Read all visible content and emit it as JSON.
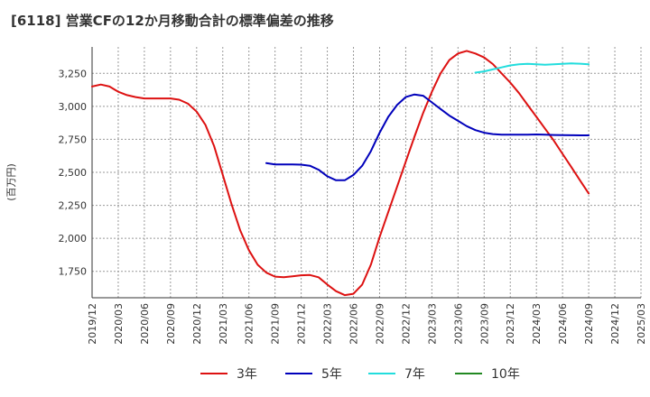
{
  "chart_data": {
    "type": "line",
    "title": "[6118]  営業CFの12か月移動合計の標準偏差の推移",
    "ylabel": "(百万円)",
    "xlabel": "",
    "ylim": [
      1550,
      3450
    ],
    "y_ticks": [
      1750,
      2000,
      2250,
      2500,
      2750,
      3000,
      3250
    ],
    "y_tick_labels": [
      "1,750",
      "2,000",
      "2,250",
      "2,500",
      "2,750",
      "3,000",
      "3,250"
    ],
    "x_ticks": [
      "2019/12",
      "2020/03",
      "2020/06",
      "2020/09",
      "2020/12",
      "2021/03",
      "2021/06",
      "2021/09",
      "2021/12",
      "2022/03",
      "2022/06",
      "2022/09",
      "2022/12",
      "2023/03",
      "2023/06",
      "2023/09",
      "2023/12",
      "2024/03",
      "2024/06",
      "2024/09",
      "2024/12",
      "2025/03"
    ],
    "grid": true,
    "legend_position": "bottom",
    "series": [
      {
        "name": "3年",
        "color": "#dd1111",
        "x": [
          "2019/12",
          "2020/01",
          "2020/02",
          "2020/03",
          "2020/04",
          "2020/05",
          "2020/06",
          "2020/07",
          "2020/08",
          "2020/09",
          "2020/10",
          "2020/11",
          "2020/12",
          "2021/01",
          "2021/02",
          "2021/03",
          "2021/04",
          "2021/05",
          "2021/06",
          "2021/07",
          "2021/08",
          "2021/09",
          "2021/10",
          "2021/11",
          "2021/12",
          "2022/01",
          "2022/02",
          "2022/03",
          "2022/04",
          "2022/05",
          "2022/06",
          "2022/07",
          "2022/08",
          "2022/09",
          "2022/10",
          "2022/11",
          "2022/12",
          "2023/01",
          "2023/02",
          "2023/03",
          "2023/04",
          "2023/05",
          "2023/06",
          "2023/07",
          "2023/08",
          "2023/09",
          "2023/10",
          "2023/11",
          "2023/12",
          "2024/01",
          "2024/02",
          "2024/03",
          "2024/04",
          "2024/05",
          "2024/06",
          "2024/07",
          "2024/08",
          "2024/09"
        ],
        "values": [
          3150,
          3165,
          3150,
          3110,
          3085,
          3070,
          3060,
          3060,
          3060,
          3060,
          3050,
          3020,
          2960,
          2860,
          2700,
          2480,
          2260,
          2060,
          1910,
          1800,
          1740,
          1710,
          1705,
          1712,
          1720,
          1722,
          1705,
          1650,
          1600,
          1570,
          1580,
          1650,
          1800,
          2010,
          2200,
          2390,
          2580,
          2770,
          2950,
          3110,
          3250,
          3350,
          3400,
          3420,
          3400,
          3370,
          3320,
          3250,
          3180,
          3100,
          3010,
          2920,
          2830,
          2740,
          2640,
          2540,
          2440,
          2340
        ],
        "display_values_note": ""
      },
      {
        "name": "5年",
        "color": "#0000bb",
        "x": [
          "2021/08",
          "2021/09",
          "2021/10",
          "2021/11",
          "2021/12",
          "2022/01",
          "2022/02",
          "2022/03",
          "2022/04",
          "2022/05",
          "2022/06",
          "2022/07",
          "2022/08",
          "2022/09",
          "2022/10",
          "2022/11",
          "2022/12",
          "2023/01",
          "2023/02",
          "2023/03",
          "2023/04",
          "2023/05",
          "2023/06",
          "2023/07",
          "2023/08",
          "2023/09",
          "2023/10",
          "2023/11",
          "2023/12",
          "2024/01",
          "2024/02",
          "2024/03",
          "2024/04",
          "2024/05",
          "2024/06",
          "2024/07",
          "2024/08",
          "2024/09"
        ],
        "values": [
          2570,
          2560,
          2560,
          2560,
          2558,
          2550,
          2520,
          2470,
          2440,
          2440,
          2480,
          2550,
          2660,
          2800,
          2920,
          3010,
          3070,
          3090,
          3080,
          3030,
          2980,
          2930,
          2890,
          2850,
          2820,
          2800,
          2790,
          2785,
          2785,
          2785,
          2786,
          2787,
          2785,
          2783,
          2782,
          2781,
          2780,
          2780
        ]
      },
      {
        "name": "7年",
        "color": "#22dddd",
        "x": [
          "2023/08",
          "2023/09",
          "2023/10",
          "2023/11",
          "2023/12",
          "2024/01",
          "2024/02",
          "2024/03",
          "2024/04",
          "2024/05",
          "2024/06",
          "2024/07",
          "2024/08",
          "2024/09"
        ],
        "values": [
          3255,
          3265,
          3280,
          3295,
          3310,
          3318,
          3322,
          3318,
          3315,
          3318,
          3322,
          3325,
          3323,
          3318
        ]
      },
      {
        "name": "10年",
        "color": "#228822",
        "x": [],
        "values": []
      }
    ]
  }
}
